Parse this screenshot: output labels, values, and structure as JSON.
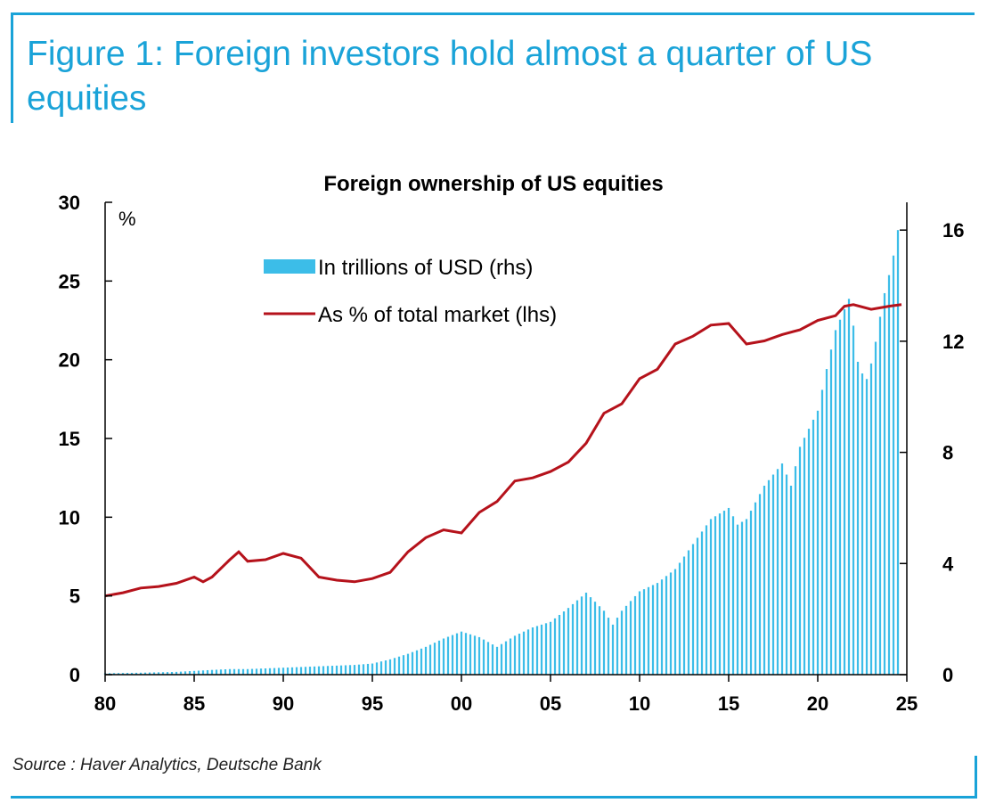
{
  "figure_title": "Figure 1: Foreign investors hold almost a quarter of US equities",
  "source": "Source : Haver Analytics, Deutsche Bank",
  "colors": {
    "accent": "#1aa3d8",
    "bars": "#3cbde8",
    "line": "#b5121b"
  },
  "chart_data": {
    "type": "bar",
    "title": "Foreign ownership of US equities",
    "left_unit_label": "%",
    "x_ticks": [
      "80",
      "85",
      "90",
      "95",
      "00",
      "05",
      "10",
      "15",
      "20",
      "25"
    ],
    "x_tick_years": [
      1980,
      1985,
      1990,
      1995,
      2000,
      2005,
      2010,
      2015,
      2020,
      2025
    ],
    "xlim": [
      1980,
      2025
    ],
    "ylim_left": [
      0,
      30
    ],
    "ylim_right": [
      0,
      17
    ],
    "y_ticks_left": [
      "0",
      "5",
      "10",
      "15",
      "20",
      "25",
      "30"
    ],
    "y_ticks_right": [
      "0",
      "4",
      "8",
      "12",
      "16"
    ],
    "legend": {
      "position": "top-left"
    },
    "series": [
      {
        "name": "In trillions of USD (rhs)",
        "type": "bar",
        "axis": "right",
        "points": [
          [
            1980,
            0.05
          ],
          [
            1982,
            0.07
          ],
          [
            1984,
            0.1
          ],
          [
            1986,
            0.17
          ],
          [
            1987,
            0.2
          ],
          [
            1988,
            0.2
          ],
          [
            1990,
            0.25
          ],
          [
            1992,
            0.3
          ],
          [
            1994,
            0.35
          ],
          [
            1995,
            0.4
          ],
          [
            1996,
            0.55
          ],
          [
            1997,
            0.75
          ],
          [
            1998,
            1.0
          ],
          [
            1999,
            1.3
          ],
          [
            2000,
            1.55
          ],
          [
            2001,
            1.35
          ],
          [
            2002,
            1.0
          ],
          [
            2002.5,
            1.2
          ],
          [
            2003,
            1.4
          ],
          [
            2004,
            1.7
          ],
          [
            2005,
            1.9
          ],
          [
            2006,
            2.4
          ],
          [
            2007,
            2.95
          ],
          [
            2008,
            2.3
          ],
          [
            2008.5,
            1.8
          ],
          [
            2009,
            2.3
          ],
          [
            2010,
            3.0
          ],
          [
            2011,
            3.3
          ],
          [
            2012,
            3.8
          ],
          [
            2013,
            4.7
          ],
          [
            2014,
            5.6
          ],
          [
            2015,
            6.0
          ],
          [
            2015.5,
            5.4
          ],
          [
            2016,
            5.6
          ],
          [
            2017,
            6.8
          ],
          [
            2018,
            7.6
          ],
          [
            2018.5,
            6.8
          ],
          [
            2019,
            8.2
          ],
          [
            2020,
            9.5
          ],
          [
            2020.5,
            11.0
          ],
          [
            2021,
            12.4
          ],
          [
            2021.8,
            13.6
          ],
          [
            2022.3,
            11.0
          ],
          [
            2022.8,
            10.6
          ],
          [
            2023.2,
            11.8
          ],
          [
            2023.7,
            13.6
          ],
          [
            2024.2,
            14.9
          ],
          [
            2024.5,
            16.0
          ],
          [
            2024.7,
            16.5
          ]
        ]
      },
      {
        "name": "As % of total market (lhs)",
        "type": "line",
        "axis": "left",
        "points": [
          [
            1980,
            5.0
          ],
          [
            1981,
            5.2
          ],
          [
            1982,
            5.5
          ],
          [
            1983,
            5.6
          ],
          [
            1984,
            5.8
          ],
          [
            1985,
            6.2
          ],
          [
            1985.5,
            5.9
          ],
          [
            1986,
            6.2
          ],
          [
            1987,
            7.3
          ],
          [
            1987.5,
            7.8
          ],
          [
            1988,
            7.2
          ],
          [
            1989,
            7.3
          ],
          [
            1990,
            7.7
          ],
          [
            1991,
            7.4
          ],
          [
            1992,
            6.2
          ],
          [
            1993,
            6.0
          ],
          [
            1994,
            5.9
          ],
          [
            1995,
            6.1
          ],
          [
            1996,
            6.5
          ],
          [
            1997,
            7.8
          ],
          [
            1998,
            8.7
          ],
          [
            1999,
            9.2
          ],
          [
            2000,
            9.0
          ],
          [
            2001,
            10.3
          ],
          [
            2002,
            11.0
          ],
          [
            2003,
            12.3
          ],
          [
            2004,
            12.5
          ],
          [
            2005,
            12.9
          ],
          [
            2006,
            13.5
          ],
          [
            2007,
            14.7
          ],
          [
            2008,
            16.6
          ],
          [
            2009,
            17.2
          ],
          [
            2010,
            18.8
          ],
          [
            2011,
            19.4
          ],
          [
            2012,
            21.0
          ],
          [
            2013,
            21.5
          ],
          [
            2014,
            22.2
          ],
          [
            2015,
            22.3
          ],
          [
            2016,
            21.0
          ],
          [
            2017,
            21.2
          ],
          [
            2018,
            21.6
          ],
          [
            2019,
            21.9
          ],
          [
            2020,
            22.5
          ],
          [
            2021,
            22.8
          ],
          [
            2021.5,
            23.4
          ],
          [
            2022,
            23.5
          ],
          [
            2023,
            23.2
          ],
          [
            2024,
            23.4
          ],
          [
            2024.7,
            23.5
          ]
        ]
      }
    ]
  }
}
